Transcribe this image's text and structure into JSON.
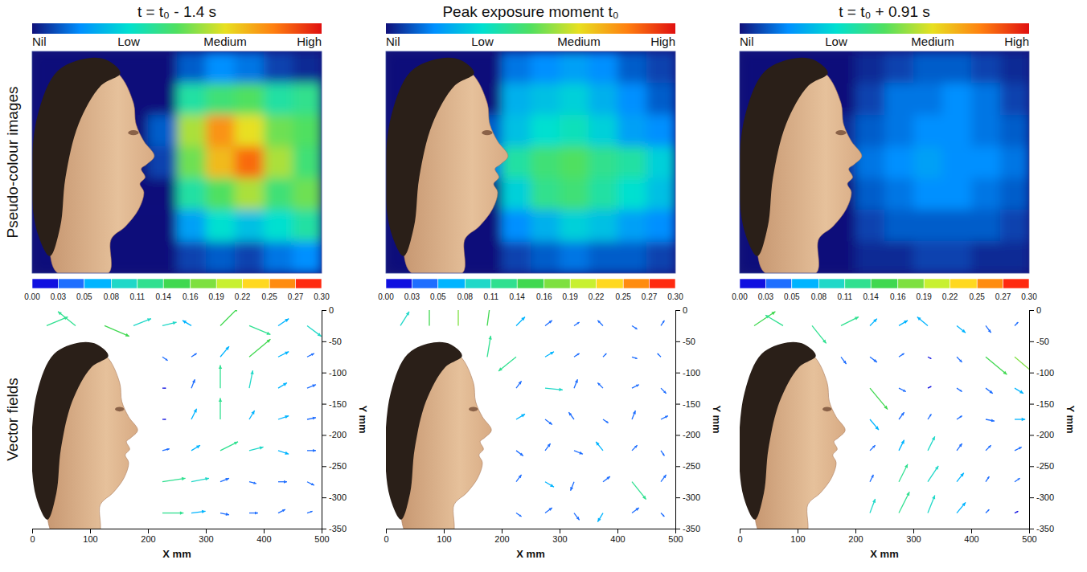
{
  "row_labels": [
    "Pseudo-colour images",
    "Vector fields"
  ],
  "chart_data": [
    {
      "type": "heatmap",
      "title": "t = t₀ - 1.4 s",
      "tick_labels": false,
      "colorbar": {
        "range": [
          0,
          3
        ],
        "ticks": [
          {
            "value": 0,
            "label": "Nil"
          },
          {
            "value": 1,
            "label": "Low"
          },
          {
            "value": 2,
            "label": "Medium"
          },
          {
            "value": 3,
            "label": "High"
          }
        ],
        "colors": [
          "#10107a",
          "#0090ff",
          "#00e0d0",
          "#50e060",
          "#e8e020",
          "#ff8010",
          "#e01010"
        ]
      },
      "cells": [
        [
          0,
          0,
          0,
          0,
          0,
          0.3,
          0.5,
          0.4,
          0.2,
          0.1
        ],
        [
          0,
          0,
          0,
          0,
          0,
          1.2,
          1.4,
          1.5,
          1.2,
          1.3
        ],
        [
          0,
          0,
          0,
          0,
          0.3,
          1.8,
          2.4,
          2.0,
          1.6,
          1.5
        ],
        [
          0,
          0,
          0,
          0,
          0.2,
          1.6,
          2.2,
          2.6,
          1.8,
          1.4
        ],
        [
          0,
          0,
          0,
          0,
          0,
          1.2,
          1.5,
          1.8,
          1.4,
          1.6
        ],
        [
          0,
          0,
          0,
          0,
          0,
          0.6,
          1.0,
          0.8,
          1.0,
          1.2
        ],
        [
          0,
          0,
          0,
          0,
          0,
          0.2,
          0.3,
          0.2,
          0.4,
          0.5
        ]
      ]
    },
    {
      "type": "heatmap",
      "title": "Peak exposure moment t₀",
      "tick_labels": false,
      "colorbar": {
        "range": [
          0,
          3
        ],
        "ticks": [
          {
            "value": 0,
            "label": "Nil"
          },
          {
            "value": 1,
            "label": "Low"
          },
          {
            "value": 2,
            "label": "Medium"
          },
          {
            "value": 3,
            "label": "High"
          }
        ],
        "colors": [
          "#10107a",
          "#0090ff",
          "#00e0d0",
          "#50e060",
          "#e8e020",
          "#ff8010",
          "#e01010"
        ]
      },
      "cells": [
        [
          0,
          0,
          0,
          0,
          0.4,
          0.5,
          0.6,
          0.5,
          0.3,
          0.2
        ],
        [
          0,
          0,
          0,
          0,
          0.7,
          0.8,
          0.9,
          0.7,
          0.5,
          0.3
        ],
        [
          0,
          0,
          0,
          0.3,
          0.8,
          1.0,
          1.1,
          0.9,
          0.6,
          0.5
        ],
        [
          0,
          0,
          0,
          0.4,
          1.2,
          1.4,
          1.5,
          1.3,
          1.2,
          0.9
        ],
        [
          0,
          0,
          0,
          0,
          0.9,
          1.3,
          1.4,
          1.2,
          1.0,
          0.8
        ],
        [
          0,
          0,
          0,
          0,
          0.5,
          0.7,
          0.9,
          0.8,
          0.6,
          0.5
        ],
        [
          0,
          0,
          0,
          0,
          0.2,
          0.3,
          0.4,
          0.3,
          0.3,
          0.2
        ]
      ]
    },
    {
      "type": "heatmap",
      "title": "t = t₀ + 0.91 s",
      "tick_labels": false,
      "colorbar": {
        "range": [
          0,
          3
        ],
        "ticks": [
          {
            "value": 0,
            "label": "Nil"
          },
          {
            "value": 1,
            "label": "Low"
          },
          {
            "value": 2,
            "label": "Medium"
          },
          {
            "value": 3,
            "label": "High"
          }
        ],
        "colors": [
          "#10107a",
          "#0090ff",
          "#00e0d0",
          "#50e060",
          "#e8e020",
          "#ff8010",
          "#e01010"
        ]
      },
      "cells": [
        [
          0,
          0,
          0,
          0,
          0.1,
          0.2,
          0.3,
          0.3,
          0.2,
          0.1
        ],
        [
          0,
          0,
          0,
          0,
          0.2,
          0.4,
          0.4,
          0.5,
          0.4,
          0.2
        ],
        [
          0,
          0,
          0,
          0.1,
          0.3,
          0.4,
          0.5,
          0.5,
          0.4,
          0.3
        ],
        [
          0,
          0,
          0,
          0.1,
          0.4,
          0.5,
          0.6,
          0.5,
          0.5,
          0.4
        ],
        [
          0,
          0,
          0,
          0,
          0.3,
          0.4,
          0.5,
          0.5,
          0.4,
          0.3
        ],
        [
          0,
          0,
          0,
          0,
          0.2,
          0.3,
          0.3,
          0.3,
          0.3,
          0.2
        ],
        [
          0,
          0,
          0,
          0,
          0.1,
          0.1,
          0.2,
          0.2,
          0.1,
          0.1
        ]
      ]
    },
    {
      "type": "quiver",
      "x_label": "X mm",
      "y_label": "Y mm",
      "xlim": [
        0,
        500
      ],
      "ylim": [
        -350,
        0
      ],
      "xticks": [
        0,
        100,
        200,
        300,
        400,
        500
      ],
      "yticks": [
        0,
        -50,
        -100,
        -150,
        -200,
        -250,
        -300,
        -350
      ],
      "colorbar": {
        "range": [
          0,
          0.3
        ],
        "ticks": [
          {
            "value": 0,
            "label": "0.00"
          },
          {
            "value": 0.027,
            "label": "0.03"
          },
          {
            "value": 0.054,
            "label": "0.05"
          },
          {
            "value": 0.082,
            "label": "0.08"
          },
          {
            "value": 0.109,
            "label": "0.11"
          },
          {
            "value": 0.136,
            "label": "0.14"
          },
          {
            "value": 0.164,
            "label": "0.16"
          },
          {
            "value": 0.191,
            "label": "0.19"
          },
          {
            "value": 0.218,
            "label": "0.22"
          },
          {
            "value": 0.246,
            "label": "0.25"
          },
          {
            "value": 0.273,
            "label": "0.27"
          },
          {
            "value": 0.3,
            "label": "0.30"
          }
        ],
        "colors": [
          "#1010e0",
          "#1e6eff",
          "#00b4ff",
          "#20d8c8",
          "#30e090",
          "#40d850",
          "#7ee040",
          "#c8f030",
          "#ffd820",
          "#ff8c10",
          "#ff2a10"
        ]
      },
      "x": [
        25,
        75,
        125,
        175,
        225,
        275,
        325,
        375,
        425,
        475
      ],
      "y": [
        -25,
        -75,
        -125,
        -175,
        -225,
        -275,
        -325
      ],
      "u": [
        [
          0.12,
          -0.1,
          0.14,
          0.1,
          0.08,
          -0.05,
          0.1,
          0.12,
          0.06,
          0.08
        ],
        [
          null,
          null,
          null,
          null,
          0.03,
          0.03,
          0.05,
          0.12,
          0.06,
          0.04
        ],
        [
          null,
          null,
          null,
          null,
          0.02,
          0.02,
          0.0,
          0.02,
          0.05,
          0.05
        ],
        [
          null,
          null,
          null,
          null,
          0.02,
          0.03,
          0.0,
          0.03,
          0.06,
          0.05
        ],
        [
          null,
          null,
          null,
          null,
          0.04,
          0.05,
          0.1,
          0.08,
          0.06,
          0.05
        ],
        [
          null,
          null,
          null,
          null,
          0.13,
          0.1,
          0.05,
          0.04,
          0.05,
          0.04
        ],
        [
          null,
          null,
          null,
          null,
          0.12,
          0.08,
          0.05,
          0.05,
          0.04,
          0.03
        ]
      ],
      "v": [
        [
          0.05,
          0.08,
          -0.06,
          0.04,
          0.02,
          0.03,
          0.1,
          -0.05,
          0.04,
          -0.06
        ],
        [
          null,
          null,
          null,
          null,
          -0.02,
          0.02,
          0.06,
          0.1,
          0.03,
          0.02
        ],
        [
          null,
          null,
          null,
          null,
          0.0,
          0.05,
          0.13,
          0.1,
          0.03,
          0.02
        ],
        [
          null,
          null,
          null,
          null,
          0.0,
          0.06,
          0.12,
          0.05,
          0.02,
          0.01
        ],
        [
          null,
          null,
          null,
          null,
          0.01,
          0.03,
          0.05,
          0.02,
          -0.02,
          0.0
        ],
        [
          null,
          null,
          null,
          null,
          0.02,
          0.02,
          0.02,
          -0.01,
          0.0,
          -0.02
        ],
        [
          null,
          null,
          null,
          null,
          0.0,
          0.01,
          -0.01,
          0.0,
          0.02,
          0.01
        ]
      ]
    },
    {
      "type": "quiver",
      "x_label": "X mm",
      "y_label": "Y mm",
      "xlim": [
        0,
        500
      ],
      "ylim": [
        -350,
        0
      ],
      "xticks": [
        0,
        100,
        200,
        300,
        400,
        500
      ],
      "yticks": [
        0,
        -50,
        -100,
        -150,
        -200,
        -250,
        -300,
        -350
      ],
      "colorbar": {
        "range": [
          0,
          0.3
        ],
        "ticks": [
          {
            "value": 0,
            "label": "0.00"
          },
          {
            "value": 0.027,
            "label": "0.03"
          },
          {
            "value": 0.054,
            "label": "0.05"
          },
          {
            "value": 0.082,
            "label": "0.08"
          },
          {
            "value": 0.109,
            "label": "0.11"
          },
          {
            "value": 0.136,
            "label": "0.14"
          },
          {
            "value": 0.164,
            "label": "0.16"
          },
          {
            "value": 0.191,
            "label": "0.19"
          },
          {
            "value": 0.218,
            "label": "0.22"
          },
          {
            "value": 0.246,
            "label": "0.25"
          },
          {
            "value": 0.273,
            "label": "0.27"
          },
          {
            "value": 0.3,
            "label": "0.30"
          }
        ],
        "colors": [
          "#1010e0",
          "#1e6eff",
          "#00b4ff",
          "#20d8c8",
          "#30e090",
          "#40d850",
          "#7ee040",
          "#c8f030",
          "#ffd820",
          "#ff8c10",
          "#ff2a10"
        ]
      },
      "x": [
        25,
        75,
        125,
        175,
        225,
        275,
        325,
        375,
        425,
        475
      ],
      "y": [
        -25,
        -75,
        -125,
        -175,
        -225,
        -275,
        -325
      ],
      "u": [
        [
          0.05,
          0.0,
          0.0,
          0.02,
          0.05,
          0.04,
          0.03,
          -0.03,
          0.03,
          0.02
        ],
        [
          null,
          null,
          null,
          0.02,
          -0.1,
          0.05,
          0.03,
          0.02,
          0.03,
          -0.02
        ],
        [
          null,
          null,
          null,
          null,
          0.03,
          0.1,
          0.02,
          -0.03,
          0.04,
          0.03
        ],
        [
          null,
          null,
          null,
          null,
          0.05,
          0.04,
          -0.03,
          0.03,
          0.02,
          0.04
        ],
        [
          null,
          null,
          null,
          null,
          0.04,
          0.03,
          0.05,
          -0.04,
          0.03,
          0.02
        ],
        [
          null,
          null,
          null,
          null,
          0.03,
          0.05,
          -0.02,
          0.04,
          0.08,
          0.03
        ],
        [
          null,
          null,
          null,
          null,
          0.03,
          0.04,
          0.03,
          -0.03,
          0.04,
          0.02
        ]
      ],
      "v": [
        [
          0.08,
          0.16,
          0.17,
          0.15,
          0.05,
          0.03,
          0.02,
          0.03,
          -0.02,
          0.03
        ],
        [
          null,
          null,
          null,
          0.12,
          -0.08,
          0.03,
          0.02,
          0.02,
          -0.01,
          0.02
        ],
        [
          null,
          null,
          null,
          null,
          0.04,
          -0.01,
          0.05,
          0.03,
          0.02,
          -0.03
        ],
        [
          null,
          null,
          null,
          null,
          0.03,
          -0.03,
          0.04,
          -0.02,
          0.05,
          0.02
        ],
        [
          null,
          null,
          null,
          null,
          -0.03,
          0.04,
          -0.02,
          0.05,
          0.03,
          -0.03
        ],
        [
          null,
          null,
          null,
          null,
          0.04,
          -0.03,
          -0.05,
          0.03,
          -0.1,
          0.04
        ],
        [
          null,
          null,
          null,
          null,
          -0.02,
          0.03,
          -0.04,
          -0.05,
          0.03,
          -0.02
        ]
      ]
    },
    {
      "type": "quiver",
      "x_label": "X mm",
      "y_label": "Y mm",
      "xlim": [
        0,
        500
      ],
      "ylim": [
        -350,
        0
      ],
      "xticks": [
        0,
        100,
        200,
        300,
        400,
        500
      ],
      "yticks": [
        0,
        -50,
        -100,
        -150,
        -200,
        -250,
        -300,
        -350
      ],
      "colorbar": {
        "range": [
          0,
          0.3
        ],
        "ticks": [
          {
            "value": 0,
            "label": "0.00"
          },
          {
            "value": 0.027,
            "label": "0.03"
          },
          {
            "value": 0.054,
            "label": "0.05"
          },
          {
            "value": 0.082,
            "label": "0.08"
          },
          {
            "value": 0.109,
            "label": "0.11"
          },
          {
            "value": 0.136,
            "label": "0.14"
          },
          {
            "value": 0.164,
            "label": "0.16"
          },
          {
            "value": 0.191,
            "label": "0.19"
          },
          {
            "value": 0.218,
            "label": "0.22"
          },
          {
            "value": 0.246,
            "label": "0.25"
          },
          {
            "value": 0.273,
            "label": "0.27"
          },
          {
            "value": 0.3,
            "label": "0.30"
          }
        ],
        "colors": [
          "#1010e0",
          "#1e6eff",
          "#00b4ff",
          "#20d8c8",
          "#30e090",
          "#40d850",
          "#7ee040",
          "#c8f030",
          "#ffd820",
          "#ff8c10",
          "#ff2a10"
        ]
      },
      "x": [
        25,
        75,
        125,
        175,
        225,
        275,
        325,
        375,
        425,
        475
      ],
      "y": [
        -25,
        -75,
        -125,
        -175,
        -225,
        -275,
        -325
      ],
      "u": [
        [
          0.12,
          -0.1,
          0.08,
          0.1,
          0.04,
          0.05,
          -0.06,
          0.05,
          0.03,
          0.02
        ],
        [
          null,
          null,
          null,
          0.03,
          0.04,
          0.03,
          0.02,
          0.03,
          0.12,
          0.13
        ],
        [
          null,
          null,
          null,
          null,
          0.1,
          0.04,
          0.02,
          0.03,
          0.04,
          0.05
        ],
        [
          null,
          null,
          null,
          null,
          0.05,
          0.03,
          0.02,
          0.03,
          0.05,
          0.06
        ],
        [
          null,
          null,
          null,
          null,
          0.03,
          0.03,
          0.04,
          0.03,
          0.03,
          0.04
        ],
        [
          null,
          null,
          null,
          null,
          0.02,
          0.05,
          0.06,
          0.04,
          0.02,
          0.03
        ],
        [
          null,
          null,
          null,
          null,
          0.03,
          0.06,
          0.04,
          0.05,
          0.02,
          0.02
        ]
      ],
      "v": [
        [
          0.08,
          0.06,
          -0.1,
          0.05,
          0.04,
          0.03,
          0.05,
          -0.04,
          -0.04,
          0.02
        ],
        [
          null,
          null,
          null,
          -0.04,
          -0.03,
          0.02,
          -0.01,
          -0.03,
          -0.1,
          -0.11
        ],
        [
          null,
          null,
          null,
          null,
          -0.12,
          -0.02,
          0.01,
          -0.02,
          -0.03,
          -0.03
        ],
        [
          null,
          null,
          null,
          null,
          -0.06,
          0.04,
          0.03,
          0.02,
          -0.01,
          0.0
        ],
        [
          null,
          null,
          null,
          null,
          0.03,
          0.06,
          0.08,
          0.04,
          0.03,
          0.02
        ],
        [
          null,
          null,
          null,
          null,
          0.04,
          0.1,
          0.09,
          0.05,
          0.03,
          0.02
        ],
        [
          null,
          null,
          null,
          null,
          0.08,
          0.12,
          0.1,
          0.06,
          0.02,
          0.01
        ]
      ]
    }
  ]
}
